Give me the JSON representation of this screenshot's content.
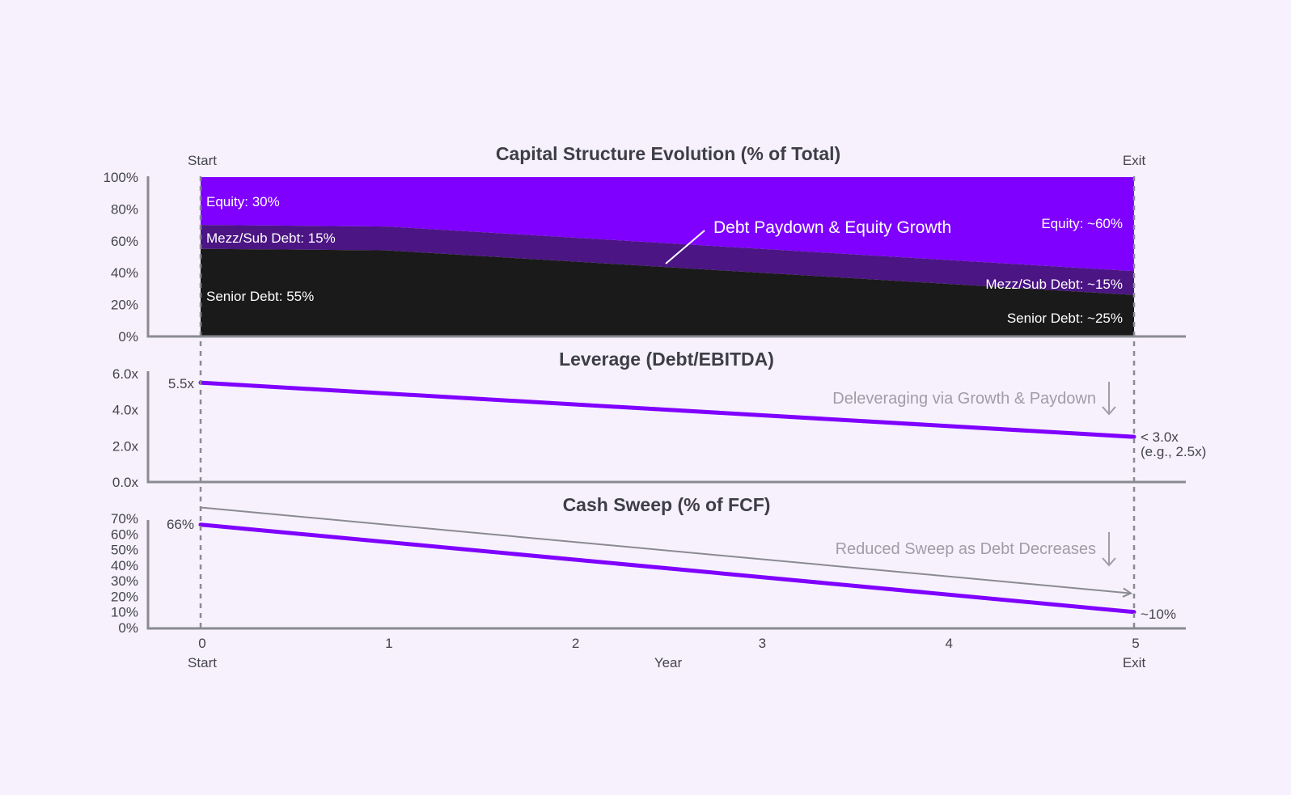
{
  "colors": {
    "background": "#f6f1fc",
    "equity": "#7f00ff",
    "mezz": "#4b1584",
    "senior": "#1a1a1a",
    "line": "#7f00ff",
    "axis": "#8a8a92",
    "muted": "#a09ca8"
  },
  "chart_data": [
    {
      "type": "area",
      "title": "Capital Structure Evolution (% of Total)",
      "x": [
        0,
        1,
        2,
        3,
        4,
        5
      ],
      "ylim": [
        0,
        100
      ],
      "y_ticks": [
        "100%",
        "80%",
        "60%",
        "40%",
        "20%",
        "0%"
      ],
      "stacked": true,
      "series": [
        {
          "name": "Senior Debt",
          "values": [
            55,
            54,
            47,
            40,
            33,
            26
          ]
        },
        {
          "name": "Mezz/Sub Debt",
          "values": [
            15,
            15,
            15,
            15,
            15,
            15
          ]
        },
        {
          "name": "Equity",
          "values": [
            30,
            31,
            38,
            45,
            52,
            59
          ]
        }
      ],
      "labels": {
        "equity_start": "Equity: 30%",
        "mezz_start": "Mezz/Sub Debt: 15%",
        "senior_start": "Senior Debt: 55%",
        "equity_end": "Equity: ~60%",
        "mezz_end": "Mezz/Sub Debt: ~15%",
        "senior_end": "Senior Debt: ~25%"
      },
      "annotation": "Debt Paydown & Equity Growth",
      "start_label": "Start",
      "exit_label": "Exit"
    },
    {
      "type": "line",
      "title": "Leverage (Debt/EBITDA)",
      "x": [
        0,
        5
      ],
      "ylim": [
        0,
        6
      ],
      "y_ticks": [
        "6.0x",
        "4.0x",
        "2.0x",
        "0.0x"
      ],
      "values": [
        5.5,
        2.5
      ],
      "start_label": "5.5x",
      "end_label_1": "< 3.0x",
      "end_label_2": "(e.g., 2.5x)",
      "annotation": "Deleveraging via Growth & Paydown"
    },
    {
      "type": "line",
      "title": "Cash Sweep (% of FCF)",
      "x": [
        0,
        5
      ],
      "ylim": [
        0,
        70
      ],
      "y_ticks": [
        "70%",
        "60%",
        "50%",
        "40%",
        "30%",
        "20%",
        "10%",
        "0%"
      ],
      "values": [
        66,
        10
      ],
      "trend_arrow": [
        77,
        22
      ],
      "start_label": "66%",
      "end_label": "~10%",
      "annotation": "Reduced Sweep as Debt Decreases"
    }
  ],
  "x_axis": {
    "ticks": [
      "0",
      "1",
      "2",
      "3",
      "4",
      "5"
    ],
    "label": "Year",
    "start_label": "Start",
    "exit_label": "Exit"
  }
}
